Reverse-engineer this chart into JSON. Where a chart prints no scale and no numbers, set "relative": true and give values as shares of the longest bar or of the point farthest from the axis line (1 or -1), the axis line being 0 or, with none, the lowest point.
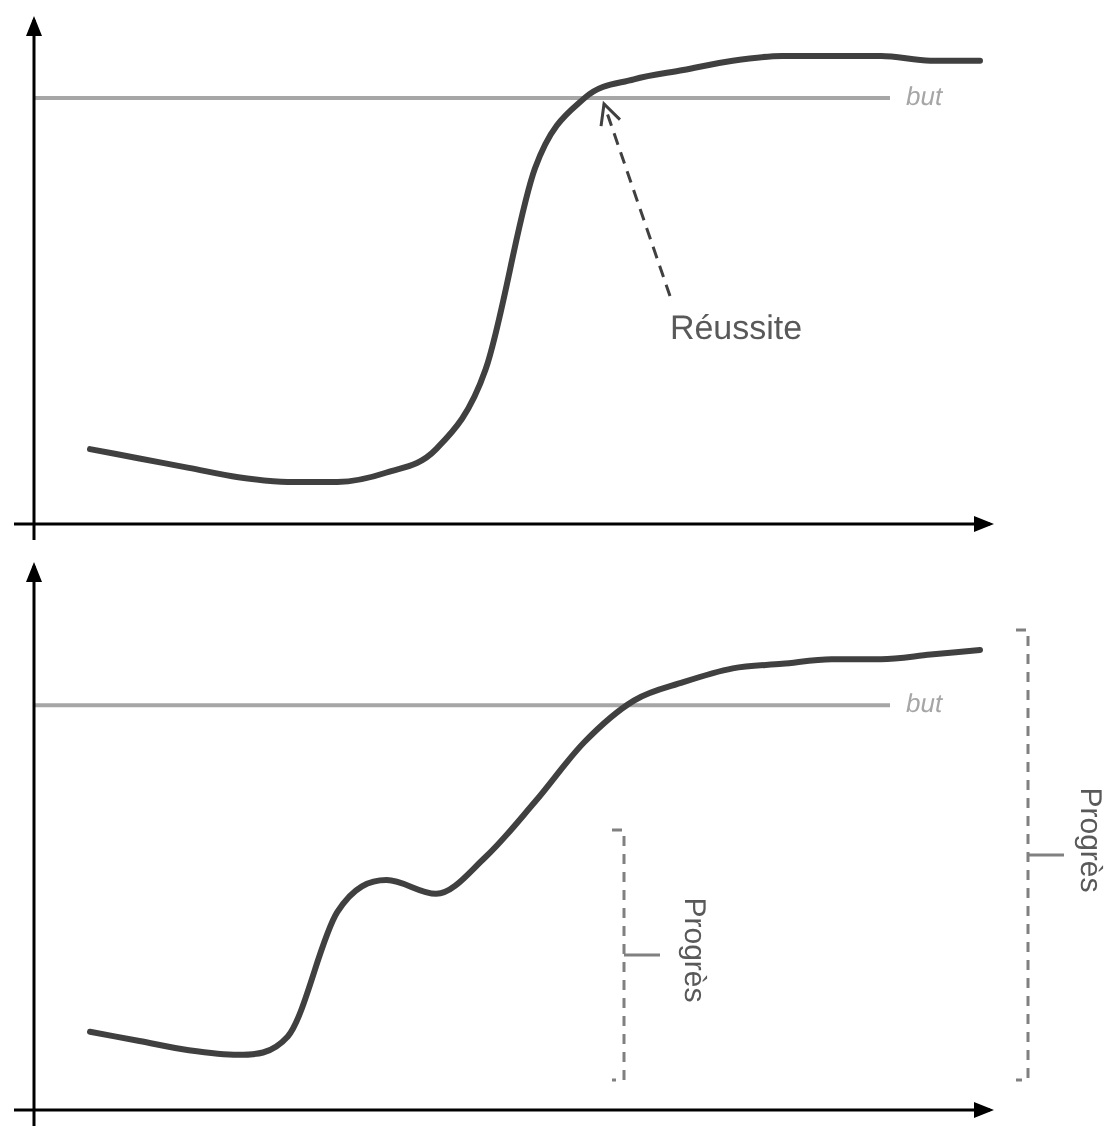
{
  "chart_data": [
    {
      "type": "line",
      "relative": true,
      "tick_labels": false,
      "marker": "none",
      "line_style": "solid",
      "categories": [
        null,
        null,
        null,
        null,
        null,
        null,
        null,
        null,
        null,
        null,
        null,
        null,
        null,
        null,
        null,
        null,
        null,
        null,
        null
      ],
      "series": [
        {
          "color": "#404040",
          "values": [
            0.16,
            0.14,
            0.12,
            0.1,
            0.09,
            0.09,
            0.11,
            0.16,
            0.33,
            0.76,
            0.91,
            0.95,
            0.97,
            0.99,
            1,
            1,
            1,
            0.99,
            0.99
          ]
        }
      ],
      "ref_lines": [
        {
          "axis": "y",
          "value": 0.91,
          "label": "but",
          "color": "#a6a6a6"
        }
      ],
      "annotations": [
        "Réussite"
      ]
    },
    {
      "type": "line",
      "relative": true,
      "tick_labels": false,
      "marker": "none",
      "line_style": "solid",
      "categories": [
        null,
        null,
        null,
        null,
        null,
        null,
        null,
        null,
        null,
        null,
        null,
        null,
        null,
        null,
        null,
        null,
        null,
        null,
        null
      ],
      "series": [
        {
          "color": "#404040",
          "values": [
            0.17,
            0.15,
            0.13,
            0.12,
            0.16,
            0.43,
            0.5,
            0.47,
            0.55,
            0.67,
            0.8,
            0.89,
            0.93,
            0.96,
            0.97,
            0.98,
            0.98,
            0.99,
            1
          ]
        }
      ],
      "ref_lines": [
        {
          "axis": "y",
          "value": 0.88,
          "label": "but",
          "color": "#a6a6a6"
        }
      ],
      "annotations": [
        "Progrès",
        "Progrès"
      ]
    }
  ]
}
